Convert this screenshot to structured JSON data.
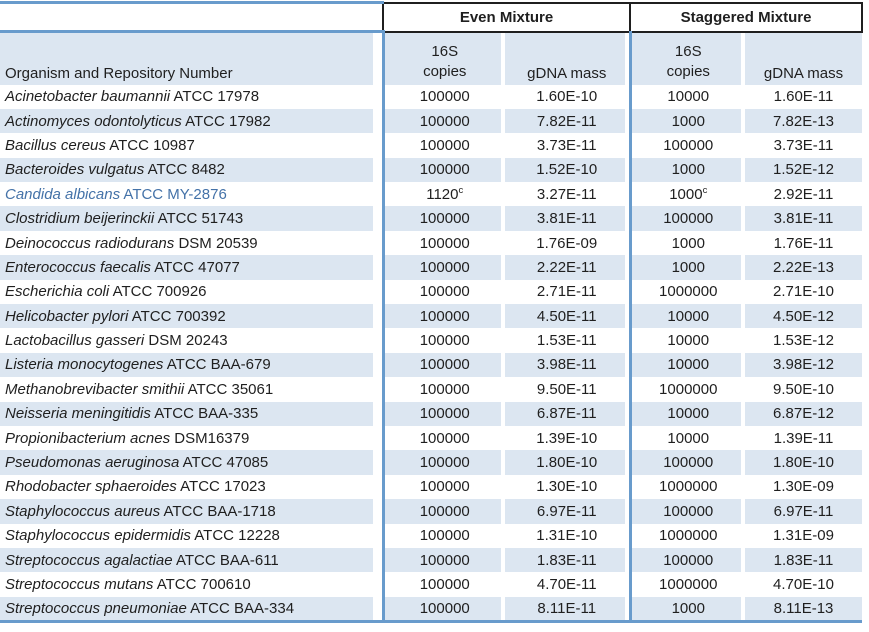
{
  "table": {
    "group_headers": {
      "even": "Even Mixture",
      "staggered": "Staggered Mixture"
    },
    "column_headers": {
      "organism": "Organism and Repository Number",
      "copies_line1": "16S",
      "copies_line2": "copies",
      "gdna_mass": "gDNA mass"
    },
    "colors": {
      "row_band": "#DCE6F1",
      "rule_blue": "#689BCC",
      "group_box_border": "#1F1F1F",
      "highlight_row_text": "#4472A8"
    },
    "rows": [
      {
        "organism": "Acinetobacter baumannii",
        "repository": "ATCC 17978",
        "even_copies": "100000",
        "even_note": "",
        "even_gdna": "1.60E-10",
        "stag_copies": "10000",
        "stag_note": "",
        "stag_gdna": "1.60E-11",
        "highlight": false
      },
      {
        "organism": "Actinomyces odontolyticus",
        "repository": "ATCC 17982",
        "even_copies": "100000",
        "even_note": "",
        "even_gdna": "7.82E-11",
        "stag_copies": "1000",
        "stag_note": "",
        "stag_gdna": "7.82E-13",
        "highlight": false
      },
      {
        "organism": "Bacillus cereus",
        "repository": "ATCC 10987",
        "even_copies": "100000",
        "even_note": "",
        "even_gdna": "3.73E-11",
        "stag_copies": "100000",
        "stag_note": "",
        "stag_gdna": "3.73E-11",
        "highlight": false
      },
      {
        "organism": "Bacteroides vulgatus",
        "repository": "ATCC 8482",
        "even_copies": "100000",
        "even_note": "",
        "even_gdna": "1.52E-10",
        "stag_copies": "1000",
        "stag_note": "",
        "stag_gdna": "1.52E-12",
        "highlight": false
      },
      {
        "organism": "Candida albicans",
        "repository": "ATCC MY-2876",
        "even_copies": "1120",
        "even_note": "c",
        "even_gdna": "3.27E-11",
        "stag_copies": "1000",
        "stag_note": "c",
        "stag_gdna": "2.92E-11",
        "highlight": true
      },
      {
        "organism": "Clostridium beijerinckii",
        "repository": "ATCC 51743",
        "even_copies": "100000",
        "even_note": "",
        "even_gdna": "3.81E-11",
        "stag_copies": "100000",
        "stag_note": "",
        "stag_gdna": "3.81E-11",
        "highlight": false
      },
      {
        "organism": "Deinococcus radiodurans",
        "repository": "DSM 20539",
        "even_copies": "100000",
        "even_note": "",
        "even_gdna": "1.76E-09",
        "stag_copies": "1000",
        "stag_note": "",
        "stag_gdna": "1.76E-11",
        "highlight": false
      },
      {
        "organism": "Enterococcus faecalis",
        "repository": "ATCC 47077",
        "even_copies": "100000",
        "even_note": "",
        "even_gdna": "2.22E-11",
        "stag_copies": "1000",
        "stag_note": "",
        "stag_gdna": "2.22E-13",
        "highlight": false
      },
      {
        "organism": "Escherichia coli",
        "repository": "ATCC 700926",
        "even_copies": "100000",
        "even_note": "",
        "even_gdna": "2.71E-11",
        "stag_copies": "1000000",
        "stag_note": "",
        "stag_gdna": "2.71E-10",
        "highlight": false
      },
      {
        "organism": "Helicobacter pylori",
        "repository": "ATCC 700392",
        "even_copies": "100000",
        "even_note": "",
        "even_gdna": "4.50E-11",
        "stag_copies": "10000",
        "stag_note": "",
        "stag_gdna": "4.50E-12",
        "highlight": false
      },
      {
        "organism": "Lactobacillus gasseri",
        "repository": "DSM 20243",
        "even_copies": "100000",
        "even_note": "",
        "even_gdna": "1.53E-11",
        "stag_copies": "10000",
        "stag_note": "",
        "stag_gdna": "1.53E-12",
        "highlight": false
      },
      {
        "organism": "Listeria monocytogenes",
        "repository": "ATCC BAA-679",
        "even_copies": "100000",
        "even_note": "",
        "even_gdna": "3.98E-11",
        "stag_copies": "10000",
        "stag_note": "",
        "stag_gdna": "3.98E-12",
        "highlight": false
      },
      {
        "organism": "Methanobrevibacter smithii",
        "repository": "ATCC 35061",
        "even_copies": "100000",
        "even_note": "",
        "even_gdna": "9.50E-11",
        "stag_copies": "1000000",
        "stag_note": "",
        "stag_gdna": "9.50E-10",
        "highlight": false
      },
      {
        "organism": "Neisseria meningitidis",
        "repository": "ATCC BAA-335",
        "even_copies": "100000",
        "even_note": "",
        "even_gdna": "6.87E-11",
        "stag_copies": "10000",
        "stag_note": "",
        "stag_gdna": "6.87E-12",
        "highlight": false
      },
      {
        "organism": "Propionibacterium acnes",
        "repository": "DSM16379",
        "even_copies": "100000",
        "even_note": "",
        "even_gdna": "1.39E-10",
        "stag_copies": "10000",
        "stag_note": "",
        "stag_gdna": "1.39E-11",
        "highlight": false
      },
      {
        "organism": "Pseudomonas aeruginosa",
        "repository": "ATCC 47085",
        "even_copies": "100000",
        "even_note": "",
        "even_gdna": "1.80E-10",
        "stag_copies": "100000",
        "stag_note": "",
        "stag_gdna": "1.80E-10",
        "highlight": false
      },
      {
        "organism": "Rhodobacter sphaeroides",
        "repository": "ATCC 17023",
        "even_copies": "100000",
        "even_note": "",
        "even_gdna": "1.30E-10",
        "stag_copies": "1000000",
        "stag_note": "",
        "stag_gdna": "1.30E-09",
        "highlight": false
      },
      {
        "organism": "Staphylococcus aureus",
        "repository": "ATCC BAA-1718",
        "even_copies": "100000",
        "even_note": "",
        "even_gdna": "6.97E-11",
        "stag_copies": "100000",
        "stag_note": "",
        "stag_gdna": "6.97E-11",
        "highlight": false
      },
      {
        "organism": "Staphylococcus epidermidis",
        "repository": "ATCC 12228",
        "even_copies": "100000",
        "even_note": "",
        "even_gdna": "1.31E-10",
        "stag_copies": "1000000",
        "stag_note": "",
        "stag_gdna": "1.31E-09",
        "highlight": false
      },
      {
        "organism": "Streptococcus agalactiae",
        "repository": "ATCC BAA-611",
        "even_copies": "100000",
        "even_note": "",
        "even_gdna": "1.83E-11",
        "stag_copies": "100000",
        "stag_note": "",
        "stag_gdna": "1.83E-11",
        "highlight": false
      },
      {
        "organism": "Streptococcus mutans",
        "repository": "ATCC 700610",
        "even_copies": "100000",
        "even_note": "",
        "even_gdna": "4.70E-11",
        "stag_copies": "1000000",
        "stag_note": "",
        "stag_gdna": "4.70E-10",
        "highlight": false
      },
      {
        "organism": "Streptococcus pneumoniae",
        "repository": "ATCC BAA-334",
        "even_copies": "100000",
        "even_note": "",
        "even_gdna": "8.11E-11",
        "stag_copies": "1000",
        "stag_note": "",
        "stag_gdna": "8.11E-13",
        "highlight": false
      }
    ]
  }
}
